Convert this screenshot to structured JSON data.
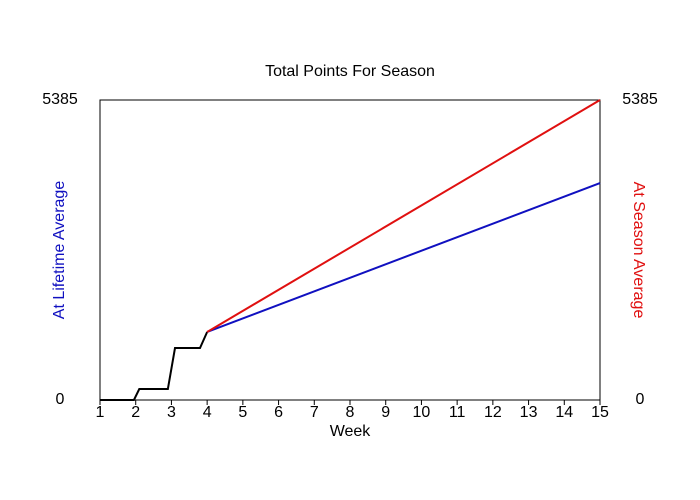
{
  "chart_data": {
    "type": "line",
    "title": "Total Points For Season",
    "xlabel": "Week",
    "ylabel": "At Lifetime Average",
    "y2label": "At Season Average",
    "ylabel_color": "#1010c0",
    "y2label_color": "#e01010",
    "xlim": [
      1,
      15
    ],
    "xticks": [
      1,
      2,
      3,
      4,
      5,
      6,
      7,
      8,
      9,
      10,
      11,
      12,
      13,
      14,
      15
    ],
    "ylim": [
      0,
      5385
    ],
    "yticks": [
      0,
      5385
    ],
    "y2lim": [
      0,
      5385
    ],
    "y2ticks": [
      0,
      5385
    ],
    "series": [
      {
        "color": "#000000",
        "x": [
          1,
          1.95,
          2.1,
          2.9,
          3.1,
          3.8,
          4
        ],
        "values": [
          0,
          0,
          197,
          197,
          933,
          933,
          1221
        ]
      },
      {
        "color": "#1010c0",
        "x": [
          4,
          15
        ],
        "values": [
          1221,
          3895
        ]
      },
      {
        "color": "#e01010",
        "axis": "y2",
        "x": [
          4,
          15
        ],
        "values": [
          1221,
          5385
        ]
      }
    ]
  }
}
